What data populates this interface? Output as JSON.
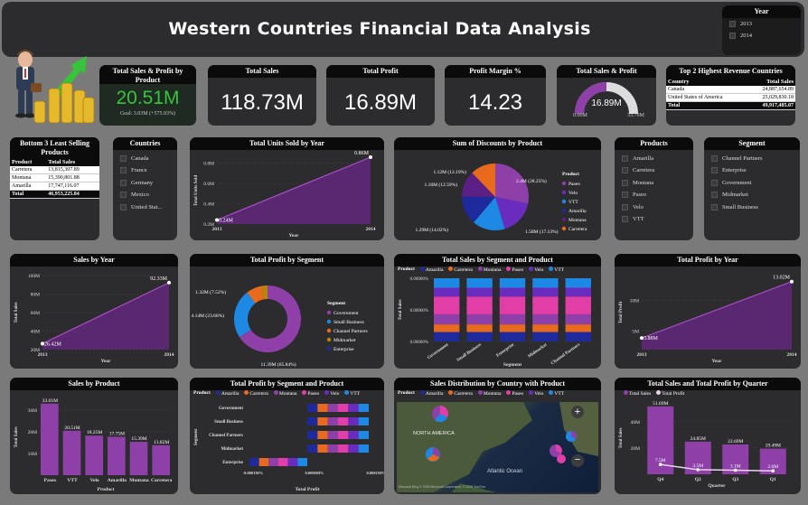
{
  "title": "Western Countries Financial Data Analysis",
  "year_filter": {
    "title": "Year",
    "options": [
      "2013",
      "2014"
    ]
  },
  "kpi_gauge": {
    "title": "Total Sales & Profit by Product",
    "value": "20.51M",
    "goal": "Goal: 3.03M (+575.93%)"
  },
  "kpi_sales": {
    "title": "Total Sales",
    "value": "118.73M"
  },
  "kpi_profit": {
    "title": "Total Profit",
    "value": "16.89M"
  },
  "kpi_margin": {
    "title": "Profit Margin %",
    "value": "14.23"
  },
  "gauge": {
    "title": "Total Sales & Profit",
    "value": "16.89M",
    "min": "0.00M",
    "max": "33.79M",
    "fraction": 0.5
  },
  "top2": {
    "title": "Top 2 Highest Revenue Countries",
    "col1": "Country",
    "col2": "Total Sales",
    "rows": [
      [
        "Canada",
        "24,887,654.89"
      ],
      [
        "United States of America",
        "25,029,830.18"
      ]
    ],
    "total": [
      "Total",
      "49,917,485.07"
    ]
  },
  "bottom3": {
    "title": "Bottom 3 Least Selling Products",
    "col1": "Product",
    "col2": "Total Sales",
    "rows": [
      [
        "Carretera",
        "13,815,307.89"
      ],
      [
        "Montana",
        "15,390,801.88"
      ],
      [
        "Amarilla",
        "17,747,116.07"
      ]
    ],
    "total": [
      "Total",
      "46,953,225.84"
    ]
  },
  "countries": {
    "title": "Countries",
    "items": [
      "Canada",
      "France",
      "Germany",
      "Mexico",
      "United Stat..."
    ]
  },
  "products": {
    "title": "Products",
    "items": [
      "Amarilla",
      "Carretera",
      "Montana",
      "Paseo",
      "Velo",
      "VTT"
    ]
  },
  "segment": {
    "title": "Segment",
    "items": [
      "Channel Partners",
      "Enterprise",
      "Government",
      "Midmarket",
      "Small Business"
    ]
  },
  "colors": {
    "purple": "#8e3fa8",
    "blue": "#1e88e5",
    "orange": "#e86a1c",
    "pink": "#e13fa7",
    "navy": "#1e2a9c",
    "violet": "#6a2bbf"
  },
  "chart_data": [
    {
      "id": "units",
      "type": "area",
      "title": "Total Units Sold by Year",
      "xlabel": "Year",
      "ylabel": "Total Units Sold",
      "x": [
        "2013",
        "2014"
      ],
      "values": [
        0.24,
        0.86
      ],
      "labels": [
        "0.24M",
        "0.86M"
      ],
      "ticks": [
        "0.2M",
        "0.4M",
        "0.6M",
        "0.8M"
      ],
      "ylim": [
        0.2,
        0.86
      ]
    },
    {
      "id": "discounts",
      "type": "pie",
      "title": "Sum of Discounts by Product",
      "legend_title": "Product",
      "slices": [
        {
          "name": "Paseo",
          "label": "2.4M (28.25%)",
          "value": 28.25,
          "color": "#8e3fa8"
        },
        {
          "name": "Velo",
          "label": "1.58M (17.13%)",
          "value": 17.13,
          "color": "#6a2bbf"
        },
        {
          "name": "VTT",
          "label": "1.46M (15.82%)",
          "value": 15.82,
          "color": "#1e88e5"
        },
        {
          "name": "Amarilla",
          "label": "1.29M (14.02%)",
          "value": 14.02,
          "color": "#1e2a9c"
        },
        {
          "name": "Montana",
          "label": "1.16M (12.59%)",
          "value": 12.59,
          "color": "#5b1f86"
        },
        {
          "name": "Carretera",
          "label": "1.12M (12.19%)",
          "value": 12.19,
          "color": "#e86a1c"
        }
      ]
    },
    {
      "id": "salesyear",
      "type": "area",
      "title": "Sales by Year",
      "xlabel": "Year",
      "ylabel": "Total Sales",
      "x": [
        "2013",
        "2014"
      ],
      "values": [
        26.42,
        92.33
      ],
      "labels": [
        "26.42M",
        "92.33M"
      ],
      "ticks": [
        "20M",
        "40M",
        "60M",
        "80M",
        "100M"
      ],
      "ylim": [
        20,
        100
      ]
    },
    {
      "id": "profitseg",
      "type": "donut",
      "title": "Total Profit by Segment",
      "legend_title": "Segment",
      "slices": [
        {
          "name": "Government",
          "label": "11.39M (65.84%)",
          "value": 65.84,
          "color": "#8e3fa8"
        },
        {
          "name": "Small Business",
          "label": "4.14M (23.66%)",
          "value": 23.66,
          "color": "#1e88e5"
        },
        {
          "name": "Channel Partners",
          "label": "1.32M (7.52%)",
          "value": 7.52,
          "color": "#e86a1c"
        },
        {
          "name": "Midmarket",
          "label": "",
          "value": 2.98,
          "color": "#b8860b"
        },
        {
          "name": "Enterprise",
          "label": "",
          "value": 0.0,
          "color": "#1e2a9c"
        }
      ]
    },
    {
      "id": "segprod",
      "type": "bar",
      "title": "Total Sales by Segment and Product",
      "xlabel": "Segment",
      "ylabel": "Total Sales",
      "legend_title": "Product",
      "categories": [
        "Government",
        "Small Business",
        "Enterprise",
        "Midmarket",
        "Channel Partners"
      ],
      "ticks": [
        "0.00000%",
        "0.00000%",
        "0.00000%"
      ]
    },
    {
      "id": "profityear",
      "type": "area",
      "title": "Total Profit by Year",
      "xlabel": "Year",
      "ylabel": "Total Profit",
      "x": [
        "2013",
        "2014"
      ],
      "values": [
        3.88,
        13.02
      ],
      "labels": [
        "3.88M",
        "13.02M"
      ],
      "ticks": [
        "5M",
        "10M"
      ],
      "ylim": [
        2,
        14
      ]
    },
    {
      "id": "salesprod",
      "type": "bar",
      "title": "Sales by Product",
      "xlabel": "Product",
      "ylabel": "Total Sales",
      "categories": [
        "Paseo",
        "VTT",
        "Velo",
        "Amarilla",
        "Montana",
        "Carretera"
      ],
      "values": [
        33.01,
        20.51,
        18.25,
        17.75,
        15.39,
        13.82
      ],
      "labels": [
        "33.01M",
        "20.51M",
        "18.25M",
        "17.75M",
        "15.39M",
        "13.82M"
      ],
      "ticks": [
        "10M",
        "20M",
        "30M"
      ],
      "ylim": [
        0,
        35
      ]
    },
    {
      "id": "profitsegprod",
      "type": "bar",
      "title": "Total Profit by Segment and Product",
      "xlabel": "Total Profit",
      "ylabel": "Segment",
      "legend_title": "Product",
      "categories": [
        "Government",
        "Small Business",
        "Channel Partners",
        "Midmarket",
        "Enterprise"
      ],
      "ticks": [
        "-0.0001M%",
        "0.0000M%",
        "0.0001M%"
      ]
    },
    {
      "id": "quarter",
      "type": "bar",
      "title": "Total Sales and Total Profit by Quarter",
      "xlabel": "Quarter",
      "ylabel": "Total Sales",
      "categories": [
        "Q4",
        "Q2",
        "Q3",
        "Q1"
      ],
      "series": [
        {
          "name": "Total Sales",
          "values": [
            51.69,
            24.85,
            22.69,
            19.49
          ],
          "labels": [
            "51.69M",
            "24.85M",
            "22.69M",
            "19.49M"
          ],
          "color": "#8e3fa8"
        },
        {
          "name": "Total Profit",
          "values": [
            7.5,
            3.5,
            3.1,
            2.6
          ],
          "labels": [
            "7.5M",
            "3.5M",
            "3.1M",
            "2.6M"
          ],
          "color": "#e7d3ef"
        }
      ],
      "ticks": [
        "20M",
        "40M"
      ],
      "ylim": [
        0,
        55
      ]
    }
  ],
  "product_legend": [
    "Amarilla",
    "Carretera",
    "Montana",
    "Paseo",
    "Velo",
    "VTT"
  ],
  "map": {
    "title": "Sales Distribution by Country with Product",
    "legend_title": "Product",
    "labels": {
      "na": "NORTH AMERICA",
      "ocean": "Atlantic Ocean",
      "credit": "Microsoft Bing © 2025 Microsoft Corporation, © 2025 TomTom"
    },
    "zoom_in": "+",
    "zoom_out": "−"
  }
}
